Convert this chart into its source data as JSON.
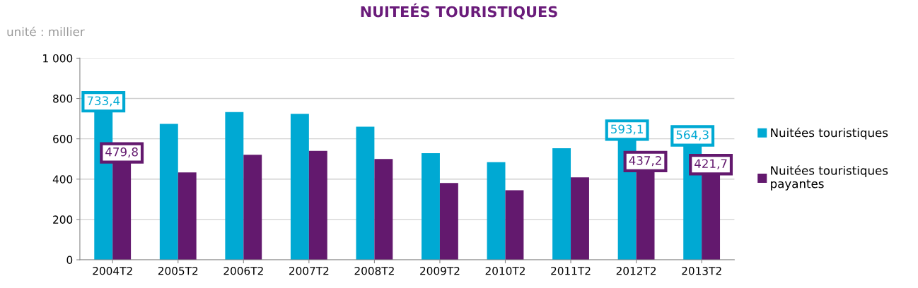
{
  "chart_data": {
    "type": "bar",
    "title": "NUITEÉS TOURISTIQUES",
    "annotations": [
      "unité : millier"
    ],
    "categories": [
      "2004T2",
      "2005T2",
      "2006T2",
      "2007T2",
      "2008T2",
      "2009T2",
      "2010T2",
      "2011T2",
      "2012T2",
      "2013T2"
    ],
    "series": [
      {
        "name": "Nuitées touristiques",
        "color": "#00a9d3",
        "values": [
          733.4,
          674,
          733,
          724,
          660,
          529,
          484,
          553,
          593.1,
          564.3
        ],
        "value_labels": [
          "733,4",
          null,
          null,
          null,
          null,
          null,
          null,
          null,
          "593,1",
          "564,3"
        ]
      },
      {
        "name": "Nuitées touristiques\npayantes",
        "color": "#63196e",
        "values": [
          479.8,
          433,
          521,
          540,
          500,
          381,
          345,
          409,
          437.2,
          421.7
        ],
        "value_labels": [
          "479,8",
          null,
          null,
          null,
          null,
          null,
          null,
          null,
          "437,2",
          "421,7"
        ]
      }
    ],
    "ylim": [
      0,
      1000
    ],
    "yticks": [
      0,
      200,
      400,
      600,
      800,
      {
        "value": 1000,
        "label": "1 000"
      }
    ],
    "grid": "y",
    "legend": "right"
  }
}
